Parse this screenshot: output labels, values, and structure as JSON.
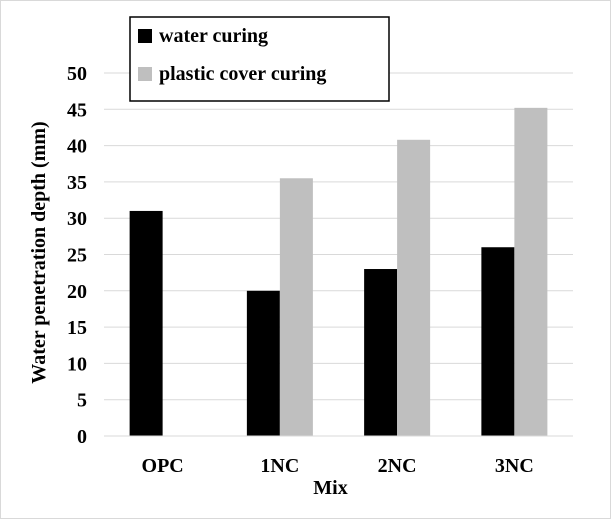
{
  "chart_data": {
    "type": "bar",
    "categories": [
      "OPC",
      "1NC",
      "2NC",
      "3NC"
    ],
    "series": [
      {
        "name": "water curing",
        "color": "#000000",
        "values": [
          31,
          20,
          23,
          26
        ]
      },
      {
        "name": "plastic cover curing",
        "color": "#bfbfbf",
        "values": [
          null,
          35.5,
          40.8,
          45.2
        ]
      }
    ],
    "xlabel": "Mix",
    "ylabel": "Water penetration depth (mm)",
    "ylim": [
      0,
      50
    ],
    "yticks": [
      "0",
      "5",
      "10",
      "15",
      "20",
      "25",
      "30",
      "35",
      "40",
      "45",
      "50"
    ],
    "grid": true,
    "gridColor": "#d9d9d9",
    "legend": "top-left"
  }
}
